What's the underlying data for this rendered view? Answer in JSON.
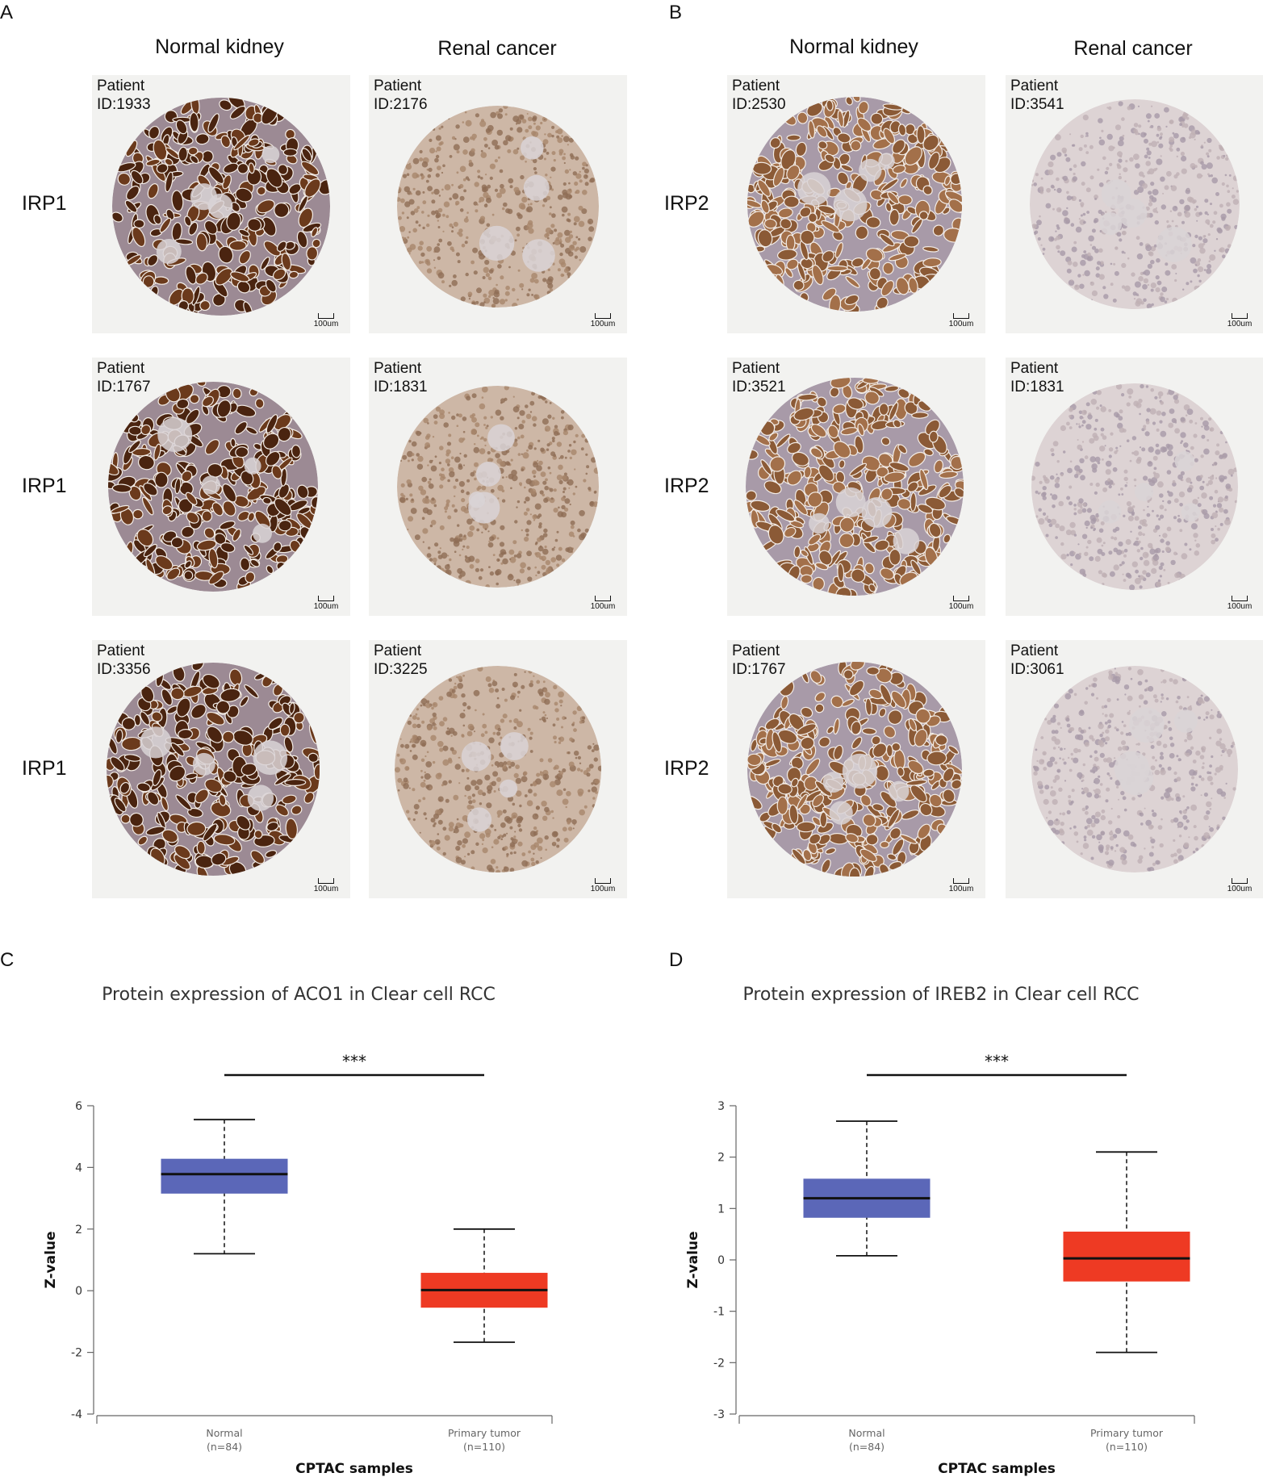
{
  "panels": {
    "A": {
      "letter": "A",
      "col_headers": [
        "Normal kidney",
        "Renal cancer"
      ],
      "rows": [
        {
          "label": "IRP1",
          "normal_pid": [
            "Patient",
            "ID:1933"
          ],
          "cancer_pid": [
            "Patient",
            "ID:2176"
          ]
        },
        {
          "label": "IRP1",
          "normal_pid": [
            "Patient",
            "ID:1767"
          ],
          "cancer_pid": [
            "Patient",
            "ID:1831"
          ]
        },
        {
          "label": "IRP1",
          "normal_pid": [
            "Patient",
            "ID:3356"
          ],
          "cancer_pid": [
            "Patient",
            "ID:3225"
          ]
        }
      ]
    },
    "B": {
      "letter": "B",
      "col_headers": [
        "Normal kidney",
        "Renal cancer"
      ],
      "rows": [
        {
          "label": "IRP2",
          "normal_pid": [
            "Patient",
            "ID:2530"
          ],
          "cancer_pid": [
            "Patient",
            "ID:3541"
          ]
        },
        {
          "label": "IRP2",
          "normal_pid": [
            "Patient",
            "ID:3521"
          ],
          "cancer_pid": [
            "Patient",
            "ID:1831"
          ]
        },
        {
          "label": "IRP2",
          "normal_pid": [
            "Patient",
            "ID:1767"
          ],
          "cancer_pid": [
            "Patient",
            "ID:3061"
          ]
        }
      ]
    },
    "scale_label": "100um",
    "tissue_colors": {
      "strong": "#4a2410",
      "moderate": "#8b5a36",
      "weak": "#b89a84",
      "stroma": "#a7a4c0",
      "background": "#f2f2f0"
    }
  },
  "chart_data": [
    {
      "panel": "C",
      "type": "box",
      "title": "Protein expression of ACO1 in Clear cell RCC",
      "xlabel": "CPTAC samples",
      "ylabel": "Z-value",
      "ylim": [
        -4,
        6
      ],
      "yticks": [
        6,
        4,
        2,
        0,
        -2,
        -4
      ],
      "significance": "***",
      "groups": [
        {
          "name": "Normal",
          "n": "(n=84)",
          "min": 1.2,
          "q1": 3.15,
          "median": 3.78,
          "q3": 4.28,
          "max": 5.55,
          "color": "#5b67b8"
        },
        {
          "name": "Primary tumor",
          "n": "(n=110)",
          "min": -1.67,
          "q1": -0.55,
          "median": 0.02,
          "q3": 0.58,
          "max": 2.0,
          "color": "#ee3a23"
        }
      ]
    },
    {
      "panel": "D",
      "type": "box",
      "title": "Protein expression of IREB2 in Clear cell RCC",
      "xlabel": "CPTAC samples",
      "ylabel": "Z-value",
      "ylim": [
        -3,
        3
      ],
      "yticks": [
        3,
        2,
        1,
        0,
        -1,
        -2,
        -3
      ],
      "significance": "***",
      "groups": [
        {
          "name": "Normal",
          "n": "(n=84)",
          "min": 0.08,
          "q1": 0.82,
          "median": 1.2,
          "q3": 1.58,
          "max": 2.7,
          "color": "#5b67b8"
        },
        {
          "name": "Primary tumor",
          "n": "(n=110)",
          "min": -1.8,
          "q1": -0.42,
          "median": 0.03,
          "q3": 0.55,
          "max": 2.1,
          "color": "#ee3a23"
        }
      ]
    }
  ]
}
